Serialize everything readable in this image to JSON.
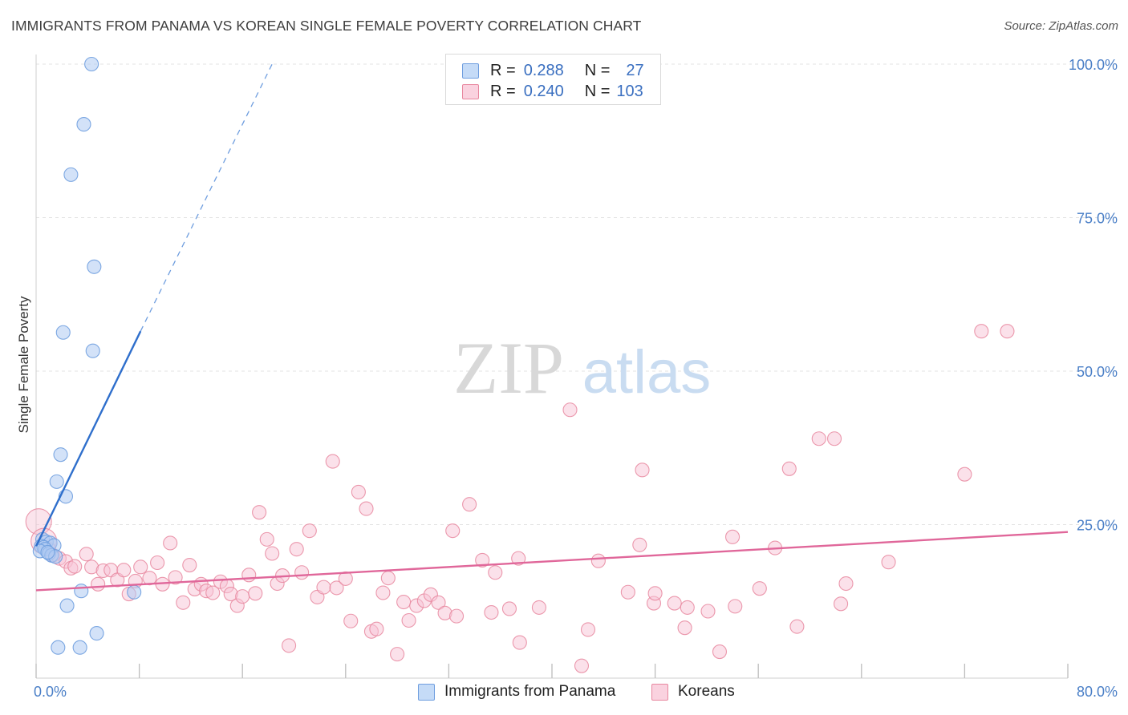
{
  "title": "IMMIGRANTS FROM PANAMA VS KOREAN SINGLE FEMALE POVERTY CORRELATION CHART",
  "source": "Source: ZipAtlas.com",
  "watermark": {
    "zip": "ZIP",
    "atlas": "atlas"
  },
  "legend": {
    "rows": [
      {
        "r_label": "R =",
        "r_value": "0.288",
        "n_label": "N =",
        "n_value": "27"
      },
      {
        "r_label": "R =",
        "r_value": "0.240",
        "n_label": "N =",
        "n_value": "103"
      }
    ]
  },
  "colors": {
    "panama_fill": "#aecbf3",
    "panama_stroke": "#6f9edf",
    "panama_line": "#2f6fcc",
    "korean_fill": "#f7c3d5",
    "korean_stroke": "#e8879f",
    "korean_line": "#e0679a",
    "tick": "#4a7fc7",
    "grid": "#e3e3e3"
  },
  "chart_data": {
    "type": "scatter",
    "title": "IMMIGRANTS FROM PANAMA VS KOREAN SINGLE FEMALE POVERTY CORRELATION CHART",
    "xlabel": "",
    "ylabel": "Single Female Poverty",
    "xlim": [
      0,
      80
    ],
    "ylim": [
      0,
      100
    ],
    "x_tick_labels": [
      "0.0%",
      "80.0%"
    ],
    "y_ticks": [
      25,
      50,
      75,
      100
    ],
    "y_tick_labels": [
      "25.0%",
      "50.0%",
      "75.0%",
      "100.0%"
    ],
    "legend_position": "top-center",
    "series": [
      {
        "name": "Immigrants from Panama",
        "R": 0.288,
        "N": 27,
        "trend": {
          "x0": 0,
          "y0": 21.5,
          "x1": 8.1,
          "y1": 56.5,
          "dash_to_x": 18.3,
          "dash_to_y": 100
        },
        "points": [
          {
            "x": 4.3,
            "y": 100
          },
          {
            "x": 3.7,
            "y": 90.2
          },
          {
            "x": 2.7,
            "y": 82.0
          },
          {
            "x": 4.5,
            "y": 67.0
          },
          {
            "x": 2.1,
            "y": 56.3
          },
          {
            "x": 4.4,
            "y": 53.3
          },
          {
            "x": 1.9,
            "y": 36.4
          },
          {
            "x": 1.6,
            "y": 32.0
          },
          {
            "x": 2.3,
            "y": 29.6
          },
          {
            "x": 0.5,
            "y": 22.6
          },
          {
            "x": 0.8,
            "y": 22.2
          },
          {
            "x": 1.1,
            "y": 22.0
          },
          {
            "x": 0.4,
            "y": 21.5
          },
          {
            "x": 0.6,
            "y": 21.3
          },
          {
            "x": 1.4,
            "y": 21.6
          },
          {
            "x": 0.7,
            "y": 21.0
          },
          {
            "x": 0.3,
            "y": 20.7
          },
          {
            "x": 1.0,
            "y": 20.3
          },
          {
            "x": 1.2,
            "y": 20.0
          },
          {
            "x": 1.5,
            "y": 19.8
          },
          {
            "x": 0.9,
            "y": 20.5
          },
          {
            "x": 3.5,
            "y": 14.2
          },
          {
            "x": 7.6,
            "y": 14.0
          },
          {
            "x": 2.4,
            "y": 11.8
          },
          {
            "x": 4.7,
            "y": 7.3
          },
          {
            "x": 1.7,
            "y": 5.0
          },
          {
            "x": 3.4,
            "y": 5.0
          }
        ]
      },
      {
        "name": "Koreans",
        "R": 0.24,
        "N": 103,
        "trend": {
          "x0": 0,
          "y0": 14.3,
          "x1": 80,
          "y1": 23.8
        },
        "points": [
          {
            "x": 0.2,
            "y": 25.5,
            "big": true
          },
          {
            "x": 0.6,
            "y": 22.3,
            "big": true
          },
          {
            "x": 1.0,
            "y": 21.0
          },
          {
            "x": 1.3,
            "y": 20.0
          },
          {
            "x": 1.8,
            "y": 19.5
          },
          {
            "x": 2.3,
            "y": 19.0
          },
          {
            "x": 2.7,
            "y": 17.9
          },
          {
            "x": 3.0,
            "y": 18.2
          },
          {
            "x": 3.9,
            "y": 20.2
          },
          {
            "x": 4.3,
            "y": 18.1
          },
          {
            "x": 4.8,
            "y": 15.3
          },
          {
            "x": 5.2,
            "y": 17.5
          },
          {
            "x": 5.8,
            "y": 17.6
          },
          {
            "x": 6.3,
            "y": 16.0
          },
          {
            "x": 6.8,
            "y": 17.6
          },
          {
            "x": 7.2,
            "y": 13.7
          },
          {
            "x": 7.7,
            "y": 15.8
          },
          {
            "x": 8.1,
            "y": 18.1
          },
          {
            "x": 8.8,
            "y": 16.3
          },
          {
            "x": 9.4,
            "y": 18.8
          },
          {
            "x": 9.8,
            "y": 15.3
          },
          {
            "x": 10.4,
            "y": 22.0
          },
          {
            "x": 10.8,
            "y": 16.4
          },
          {
            "x": 11.4,
            "y": 12.3
          },
          {
            "x": 11.9,
            "y": 18.4
          },
          {
            "x": 12.3,
            "y": 14.5
          },
          {
            "x": 12.8,
            "y": 15.3
          },
          {
            "x": 13.2,
            "y": 14.2
          },
          {
            "x": 13.7,
            "y": 13.9
          },
          {
            "x": 14.3,
            "y": 15.7
          },
          {
            "x": 14.8,
            "y": 15.0
          },
          {
            "x": 15.1,
            "y": 13.7
          },
          {
            "x": 15.6,
            "y": 11.8
          },
          {
            "x": 16.0,
            "y": 13.3
          },
          {
            "x": 16.5,
            "y": 16.8
          },
          {
            "x": 17.0,
            "y": 13.8
          },
          {
            "x": 17.3,
            "y": 27.0
          },
          {
            "x": 17.9,
            "y": 22.6
          },
          {
            "x": 18.3,
            "y": 20.3
          },
          {
            "x": 18.7,
            "y": 15.4
          },
          {
            "x": 19.1,
            "y": 16.7
          },
          {
            "x": 19.6,
            "y": 5.3
          },
          {
            "x": 20.2,
            "y": 21.0
          },
          {
            "x": 20.6,
            "y": 17.2
          },
          {
            "x": 21.2,
            "y": 24.0
          },
          {
            "x": 21.8,
            "y": 13.2
          },
          {
            "x": 22.3,
            "y": 14.8
          },
          {
            "x": 23.0,
            "y": 35.3
          },
          {
            "x": 23.3,
            "y": 14.7
          },
          {
            "x": 24.0,
            "y": 16.2
          },
          {
            "x": 24.4,
            "y": 9.3
          },
          {
            "x": 25.0,
            "y": 30.3
          },
          {
            "x": 25.6,
            "y": 27.6
          },
          {
            "x": 26.0,
            "y": 7.6
          },
          {
            "x": 26.4,
            "y": 8.0
          },
          {
            "x": 26.9,
            "y": 13.9
          },
          {
            "x": 27.3,
            "y": 16.3
          },
          {
            "x": 28.0,
            "y": 3.9
          },
          {
            "x": 28.5,
            "y": 12.4
          },
          {
            "x": 28.9,
            "y": 9.4
          },
          {
            "x": 29.5,
            "y": 11.8
          },
          {
            "x": 30.1,
            "y": 12.6
          },
          {
            "x": 30.6,
            "y": 13.6
          },
          {
            "x": 31.2,
            "y": 12.3
          },
          {
            "x": 31.7,
            "y": 10.6
          },
          {
            "x": 32.3,
            "y": 24.0
          },
          {
            "x": 32.6,
            "y": 10.1
          },
          {
            "x": 33.6,
            "y": 28.3
          },
          {
            "x": 34.6,
            "y": 19.2
          },
          {
            "x": 35.3,
            "y": 10.7
          },
          {
            "x": 35.6,
            "y": 17.2
          },
          {
            "x": 36.7,
            "y": 11.3
          },
          {
            "x": 37.4,
            "y": 19.5
          },
          {
            "x": 37.5,
            "y": 5.8
          },
          {
            "x": 39.0,
            "y": 11.5
          },
          {
            "x": 41.4,
            "y": 43.7
          },
          {
            "x": 42.3,
            "y": 2.0
          },
          {
            "x": 42.8,
            "y": 7.9
          },
          {
            "x": 43.6,
            "y": 19.1
          },
          {
            "x": 45.9,
            "y": 14.0
          },
          {
            "x": 46.8,
            "y": 21.7
          },
          {
            "x": 47.0,
            "y": 33.9
          },
          {
            "x": 47.9,
            "y": 12.2
          },
          {
            "x": 48.0,
            "y": 13.8
          },
          {
            "x": 49.5,
            "y": 12.2
          },
          {
            "x": 50.3,
            "y": 8.2
          },
          {
            "x": 50.5,
            "y": 11.5
          },
          {
            "x": 52.1,
            "y": 10.9
          },
          {
            "x": 53.0,
            "y": 4.3
          },
          {
            "x": 54.0,
            "y": 23.0
          },
          {
            "x": 54.2,
            "y": 11.7
          },
          {
            "x": 56.1,
            "y": 14.6
          },
          {
            "x": 57.3,
            "y": 21.2
          },
          {
            "x": 58.4,
            "y": 34.1
          },
          {
            "x": 59.0,
            "y": 8.4
          },
          {
            "x": 60.7,
            "y": 39.0
          },
          {
            "x": 61.9,
            "y": 39.0
          },
          {
            "x": 62.4,
            "y": 12.1
          },
          {
            "x": 62.8,
            "y": 15.4
          },
          {
            "x": 66.1,
            "y": 18.9
          },
          {
            "x": 72.0,
            "y": 33.2
          },
          {
            "x": 73.3,
            "y": 56.5
          },
          {
            "x": 75.3,
            "y": 56.5
          }
        ]
      }
    ]
  },
  "bottom_legend": {
    "panama": "Immigrants from Panama",
    "korean": "Koreans"
  }
}
